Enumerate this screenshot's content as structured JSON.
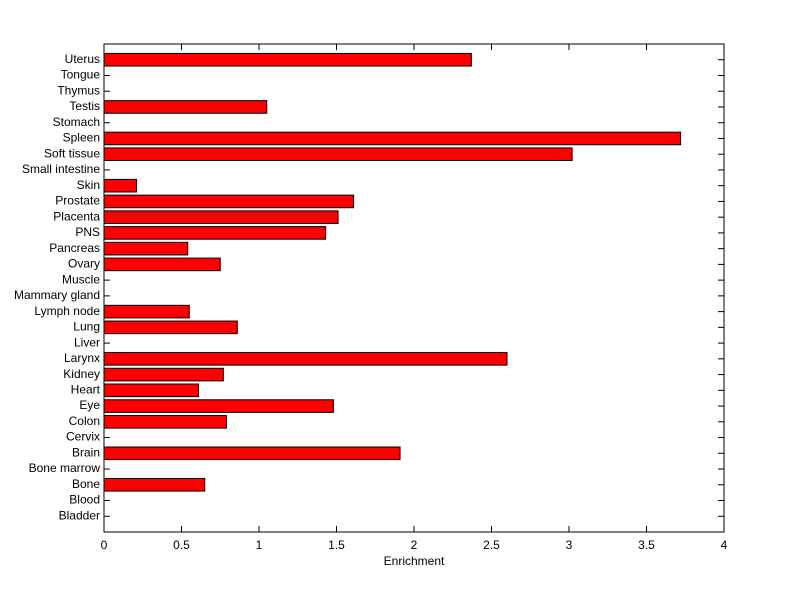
{
  "chart_data": {
    "type": "barh",
    "xlabel": "Enrichment",
    "color": "#ff0000",
    "categories": [
      "Bladder",
      "Blood",
      "Bone",
      "Bone marrow",
      "Brain",
      "Cervix",
      "Colon",
      "Eye",
      "Heart",
      "Kidney",
      "Larynx",
      "Liver",
      "Lung",
      "Lymph node",
      "Mammary gland",
      "Muscle",
      "Ovary",
      "Pancreas",
      "PNS",
      "Placenta",
      "Prostate",
      "Skin",
      "Small intestine",
      "Soft tissue",
      "Spleen",
      "Stomach",
      "Testis",
      "Thymus",
      "Tongue",
      "Uterus"
    ],
    "values": [
      0,
      0,
      0.65,
      0,
      1.91,
      0,
      0.79,
      1.48,
      0.61,
      0.77,
      2.6,
      0,
      0.86,
      0.55,
      0,
      0,
      0.75,
      0.54,
      1.43,
      1.51,
      1.61,
      0.21,
      0,
      3.02,
      3.72,
      0,
      1.05,
      0,
      0,
      2.37
    ],
    "xlim": [
      0,
      4
    ],
    "xticks": [
      0,
      0.5,
      1,
      1.5,
      2,
      2.5,
      3,
      3.5,
      4
    ]
  }
}
